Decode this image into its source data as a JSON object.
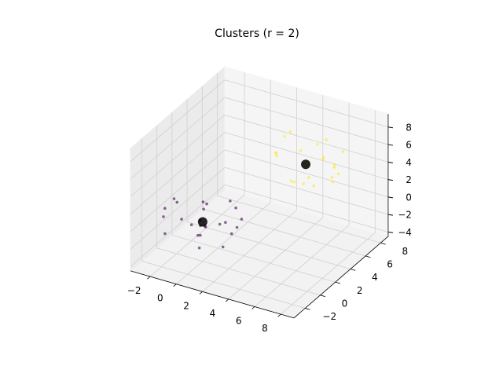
{
  "chart_data": {
    "type": "scatter3d",
    "title": "Clusters (r = 2)",
    "xlim": [
      -3.5,
      9
    ],
    "ylim": [
      -3.5,
      9
    ],
    "zlim": [
      -4.5,
      9.5
    ],
    "xticks": [
      {
        "value": -2,
        "label": "−2"
      },
      0,
      2,
      4,
      6,
      8
    ],
    "yticks": [
      {
        "value": -2,
        "label": "−2"
      },
      0,
      2,
      4,
      6,
      8
    ],
    "zticks": [
      {
        "value": -4,
        "label": "−4"
      },
      {
        "value": -2,
        "label": "−2"
      },
      0,
      2,
      4,
      6,
      8
    ],
    "grid": true,
    "series": [
      {
        "color": "#440154",
        "x": [
          0.8,
          -1.2,
          1.5,
          -0.4,
          2.1,
          -1.9,
          0.3,
          -2.6,
          1.1,
          -0.7,
          2.8,
          -1.5,
          0.5,
          1.7,
          -0.9,
          -2.2,
          0.1,
          1.3,
          -1.1,
          2.4,
          -0.2,
          -1.6,
          0.9,
          -3.0,
          1.9
        ],
        "y": [
          -1.0,
          0.6,
          1.8,
          -2.1,
          0.2,
          -0.5,
          2.5,
          1.1,
          -1.6,
          0.9,
          -0.3,
          -2.4,
          1.4,
          0.7,
          2.1,
          -1.2,
          -0.8,
          -2.7,
          1.6,
          1.0,
          0.4,
          2.9,
          -1.9,
          0.0,
          -0.6
        ],
        "z": [
          0.5,
          -1.3,
          0.9,
          1.7,
          -0.6,
          2.2,
          -1.8,
          0.3,
          1.2,
          -2.5,
          0.8,
          -0.2,
          -1.1,
          2.6,
          0.1,
          1.5,
          -0.9,
          -0.4,
          -2.1,
          0.6,
          1.9,
          -1.4,
          2.0,
          -0.7,
          -1.6
        ]
      },
      {
        "color": "#fde725",
        "x": [
          5.6,
          4.1,
          6.9,
          3.8,
          5.2,
          7.3,
          4.7,
          2.9,
          6.1,
          5.9,
          4.4,
          7.8,
          3.3,
          5.0,
          6.5,
          4.9,
          2.6,
          6.8,
          5.4,
          4.0,
          7.1,
          3.6,
          5.8,
          6.2,
          4.6
        ],
        "y": [
          4.3,
          6.2,
          5.5,
          3.1,
          7.0,
          4.8,
          5.9,
          6.6,
          2.8,
          4.5,
          7.6,
          5.1,
          4.0,
          3.5,
          6.0,
          7.9,
          5.3,
          4.2,
          2.4,
          6.8,
          5.7,
          4.6,
          3.9,
          6.4,
          5.0
        ],
        "z": [
          6.1,
          3.9,
          5.4,
          7.2,
          4.4,
          5.8,
          2.7,
          6.6,
          4.9,
          3.3,
          5.1,
          7.6,
          6.3,
          4.1,
          2.9,
          5.6,
          4.7,
          6.9,
          5.2,
          3.6,
          4.3,
          7.9,
          5.9,
          3.0,
          6.4
        ]
      },
      {
        "color": "#000000",
        "x": [
          0,
          5
        ],
        "y": [
          0,
          5
        ],
        "z": [
          0,
          5
        ]
      }
    ]
  }
}
